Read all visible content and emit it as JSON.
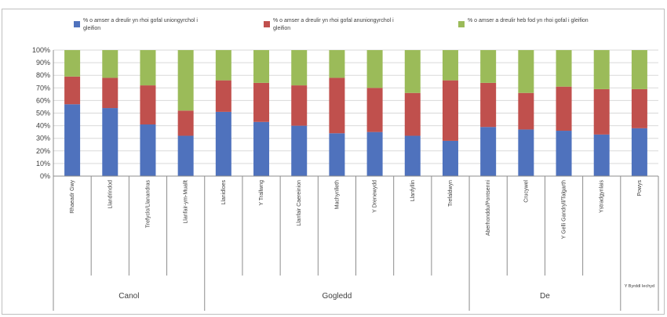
{
  "chart_data": {
    "type": "bar",
    "stacked": true,
    "percent": true,
    "ylim": [
      0,
      100
    ],
    "yticks": [
      "0%",
      "10%",
      "20%",
      "30%",
      "40%",
      "50%",
      "60%",
      "70%",
      "80%",
      "90%",
      "100%"
    ],
    "legend_position": "top",
    "grid": true,
    "categories": [
      "Rhaeadr Gwy",
      "Llandrindod",
      "Trefyclo/Llanandras",
      "Llanfair-ym-Muallt",
      "Llanidloes",
      "Y Trallwng",
      "Llanfair Caereinion",
      "Machynlleth",
      "Y Drenewydd",
      "Llanfyllin",
      "Trefaldwyn",
      "Aberhonddu/Pontsenni",
      "Crucywel",
      "Y Gelli Gandryll/Talgarth",
      "Ystradgynlais",
      "Powys"
    ],
    "groups": [
      {
        "label": "Canol",
        "count": 4
      },
      {
        "label": "Gogledd",
        "count": 7
      },
      {
        "label": "De",
        "count": 4
      },
      {
        "label": "Y Byrddl Iechyd",
        "count": 1
      }
    ],
    "series": [
      {
        "name": "% o amser a dreulir yn rhoi gofal uniongyrchol i gleifion",
        "color": "#4f72bd",
        "values": [
          57,
          54,
          41,
          32,
          51,
          43,
          40,
          34,
          35,
          32,
          28,
          39,
          37,
          36,
          33,
          38
        ]
      },
      {
        "name": "% o amser a dreulir yn rhoi gofal anuniongyrchol i gleifion",
        "color": "#c0504d",
        "values": [
          22,
          24,
          31,
          20,
          25,
          31,
          32,
          44,
          35,
          34,
          48,
          35,
          29,
          35,
          36,
          31
        ]
      },
      {
        "name": "% o amser a dreulir heb fod yn rhoi gofal i gleifion",
        "color": "#9bbb59",
        "values": [
          21,
          22,
          28,
          48,
          24,
          26,
          28,
          22,
          30,
          34,
          24,
          26,
          34,
          29,
          31,
          31
        ]
      }
    ]
  }
}
